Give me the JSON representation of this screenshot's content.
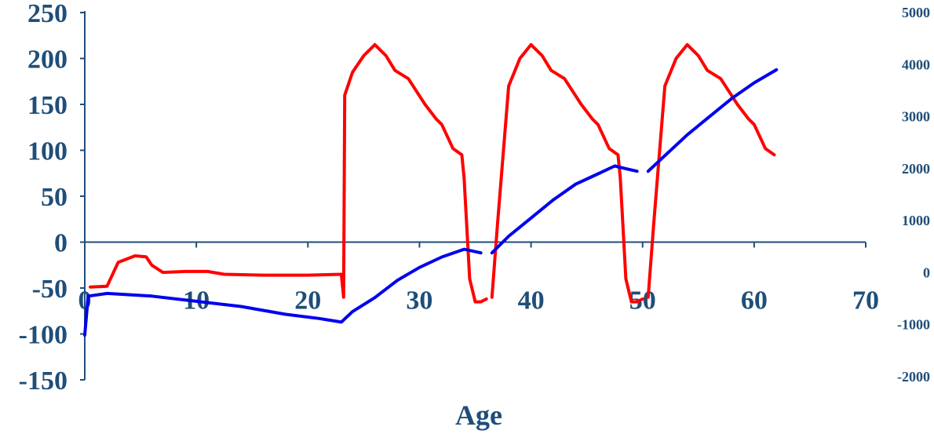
{
  "chart_data": {
    "type": "line",
    "xlabel": "Age",
    "xlim": [
      0,
      70
    ],
    "x_ticks": [
      0,
      10,
      20,
      30,
      40,
      50,
      60,
      70
    ],
    "y_left": {
      "lim": [
        -150,
        250
      ],
      "ticks": [
        -150,
        -100,
        -50,
        0,
        50,
        100,
        150,
        200,
        250
      ]
    },
    "y_right": {
      "lim": [
        -2000,
        5000
      ],
      "ticks": [
        -2000,
        -1000,
        0,
        1000,
        2000,
        3000,
        4000,
        5000
      ]
    },
    "grid": false,
    "legend": "none",
    "series": [
      {
        "axis": "left",
        "color": "#ff0000",
        "segments": [
          [
            [
              0.5,
              -49
            ],
            [
              2,
              -48
            ],
            [
              3,
              -22
            ],
            [
              4.5,
              -15
            ],
            [
              5.5,
              -16
            ],
            [
              6,
              -25
            ],
            [
              7,
              -33
            ],
            [
              9,
              -32
            ],
            [
              11,
              -32
            ],
            [
              12.5,
              -35
            ],
            [
              16,
              -36
            ],
            [
              20,
              -36
            ],
            [
              23,
              -35
            ],
            [
              23.2,
              -60
            ],
            [
              23.3,
              160
            ],
            [
              24,
              185
            ],
            [
              25,
              203
            ],
            [
              26,
              215
            ],
            [
              27,
              203
            ],
            [
              27.8,
              187
            ],
            [
              29,
              178
            ],
            [
              30.5,
              150
            ],
            [
              31.5,
              134
            ],
            [
              32,
              128
            ],
            [
              33,
              102
            ],
            [
              33.8,
              95
            ],
            [
              34,
              70
            ],
            [
              34.5,
              -40
            ],
            [
              35,
              -65
            ],
            [
              35.5,
              -65
            ],
            [
              36,
              -62
            ]
          ],
          [
            [
              36.5,
              -60
            ],
            [
              37,
              20
            ],
            [
              38,
              170
            ],
            [
              39,
              200
            ],
            [
              40,
              215
            ],
            [
              41,
              203
            ],
            [
              41.8,
              187
            ],
            [
              43,
              178
            ],
            [
              44.5,
              150
            ],
            [
              45.5,
              134
            ],
            [
              46,
              128
            ],
            [
              47,
              102
            ],
            [
              47.8,
              95
            ],
            [
              48,
              70
            ],
            [
              48.5,
              -40
            ],
            [
              49,
              -65
            ],
            [
              49.5,
              -65
            ],
            [
              50,
              -62
            ]
          ],
          [
            [
              50.5,
              -60
            ],
            [
              51,
              20
            ],
            [
              52,
              170
            ],
            [
              53,
              200
            ],
            [
              54,
              215
            ],
            [
              55,
              203
            ],
            [
              55.8,
              187
            ],
            [
              57,
              178
            ],
            [
              58.5,
              150
            ],
            [
              59.5,
              134
            ],
            [
              60,
              128
            ],
            [
              61,
              102
            ],
            [
              61.8,
              95
            ]
          ]
        ]
      },
      {
        "axis": "right",
        "color": "#0000ee",
        "segments": [
          [
            [
              0,
              -1200
            ],
            [
              0.3,
              -450
            ],
            [
              2,
              -400
            ],
            [
              6,
              -450
            ],
            [
              10,
              -550
            ],
            [
              14,
              -650
            ],
            [
              18,
              -800
            ],
            [
              21,
              -880
            ],
            [
              23,
              -950
            ],
            [
              24,
              -750
            ],
            [
              26,
              -480
            ],
            [
              28,
              -150
            ],
            [
              30,
              100
            ],
            [
              32,
              300
            ],
            [
              34,
              450
            ],
            [
              35.5,
              380
            ]
          ],
          [
            [
              36.5,
              380
            ],
            [
              38,
              700
            ],
            [
              40,
              1050
            ],
            [
              42,
              1400
            ],
            [
              44,
              1700
            ],
            [
              46,
              1900
            ],
            [
              47.5,
              2050
            ],
            [
              48.5,
              2000
            ],
            [
              49.5,
              1950
            ]
          ],
          [
            [
              50.5,
              1950
            ],
            [
              52,
              2250
            ],
            [
              54,
              2650
            ],
            [
              56,
              3000
            ],
            [
              58,
              3350
            ],
            [
              60,
              3650
            ],
            [
              62,
              3900
            ]
          ]
        ]
      }
    ]
  }
}
